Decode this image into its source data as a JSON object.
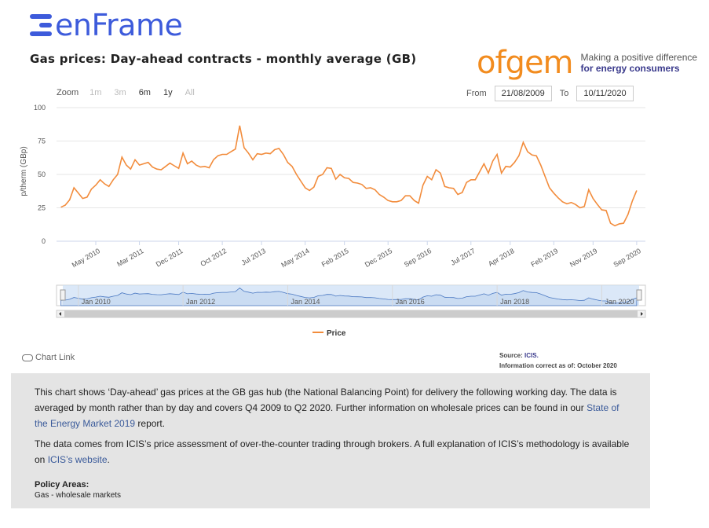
{
  "brand": {
    "name": "enFrame",
    "color": "#3d5bdb"
  },
  "ofgem": {
    "name": "ofgem",
    "tagline_1": "Making a positive difference",
    "tagline_2": "for energy consumers",
    "color": "#f28c1f"
  },
  "toolbar": {
    "zoom_label": "Zoom",
    "zoom_options": [
      "1m",
      "3m",
      "6m",
      "1y",
      "All"
    ],
    "zoom_enabled": [
      false,
      false,
      true,
      true,
      false
    ],
    "from_label": "From",
    "from_value": "21/08/2009",
    "to_label": "To",
    "to_value": "10/11/2020"
  },
  "chart_data": {
    "type": "line",
    "title": "Gas prices: Day-ahead contracts - monthly average (GB)",
    "ylabel": "p/therm (GBp)",
    "ylim": [
      0,
      100
    ],
    "yticks": [
      0,
      25,
      50,
      75,
      100
    ],
    "x_start": "2009-08",
    "x_end": "2020-11",
    "x_tick_labels": [
      {
        "label": "May 2010",
        "date": "2010-05"
      },
      {
        "label": "Mar 2011",
        "date": "2011-03"
      },
      {
        "label": "Dec 2011",
        "date": "2011-12"
      },
      {
        "label": "Oct 2012",
        "date": "2012-10"
      },
      {
        "label": "Jul 2013",
        "date": "2013-07"
      },
      {
        "label": "May 2014",
        "date": "2014-05"
      },
      {
        "label": "Feb 2015",
        "date": "2015-02"
      },
      {
        "label": "Dec 2015",
        "date": "2015-12"
      },
      {
        "label": "Sep 2016",
        "date": "2016-09"
      },
      {
        "label": "Jul 2017",
        "date": "2017-07"
      },
      {
        "label": "Apr 2018",
        "date": "2018-04"
      },
      {
        "label": "Feb 2019",
        "date": "2019-02"
      },
      {
        "label": "Nov 2019",
        "date": "2019-11"
      },
      {
        "label": "Sep 2020",
        "date": "2020-09"
      }
    ],
    "navigator_labels": [
      {
        "label": "Jan 2010",
        "date": "2010-01"
      },
      {
        "label": "Jan 2012",
        "date": "2012-01"
      },
      {
        "label": "Jan 2014",
        "date": "2014-01"
      },
      {
        "label": "Jan 2016",
        "date": "2016-01"
      },
      {
        "label": "Jan 2018",
        "date": "2018-01"
      },
      {
        "label": "Jan 2020",
        "date": "2020-01"
      }
    ],
    "series": [
      {
        "name": "Price",
        "color": "#f28c3c",
        "points": [
          [
            "2009-09",
            25.5
          ],
          [
            "2009-10",
            27
          ],
          [
            "2009-11",
            31
          ],
          [
            "2009-12",
            40
          ],
          [
            "2010-01",
            36
          ],
          [
            "2010-02",
            32
          ],
          [
            "2010-03",
            33
          ],
          [
            "2010-04",
            39
          ],
          [
            "2010-05",
            42
          ],
          [
            "2010-06",
            46
          ],
          [
            "2010-07",
            43
          ],
          [
            "2010-08",
            41
          ],
          [
            "2010-09",
            46
          ],
          [
            "2010-10",
            50
          ],
          [
            "2010-11",
            63
          ],
          [
            "2010-12",
            57
          ],
          [
            "2011-01",
            54
          ],
          [
            "2011-02",
            61
          ],
          [
            "2011-03",
            57
          ],
          [
            "2011-04",
            58
          ],
          [
            "2011-05",
            59
          ],
          [
            "2011-06",
            55.5
          ],
          [
            "2011-07",
            54
          ],
          [
            "2011-08",
            53.5
          ],
          [
            "2011-09",
            56
          ],
          [
            "2011-10",
            58.5
          ],
          [
            "2011-11",
            56.5
          ],
          [
            "2011-12",
            54.5
          ],
          [
            "2012-01",
            66
          ],
          [
            "2012-02",
            58
          ],
          [
            "2012-03",
            60
          ],
          [
            "2012-04",
            57
          ],
          [
            "2012-05",
            55.5
          ],
          [
            "2012-06",
            56
          ],
          [
            "2012-07",
            55
          ],
          [
            "2012-08",
            61
          ],
          [
            "2012-09",
            64
          ],
          [
            "2012-10",
            65
          ],
          [
            "2012-11",
            65
          ],
          [
            "2012-12",
            67
          ],
          [
            "2013-01",
            69
          ],
          [
            "2013-02",
            86.5
          ],
          [
            "2013-03",
            70
          ],
          [
            "2013-04",
            66
          ],
          [
            "2013-05",
            61
          ],
          [
            "2013-06",
            65.5
          ],
          [
            "2013-07",
            65
          ],
          [
            "2013-08",
            66
          ],
          [
            "2013-09",
            65.5
          ],
          [
            "2013-10",
            68.5
          ],
          [
            "2013-11",
            69.5
          ],
          [
            "2013-12",
            65
          ],
          [
            "2014-01",
            59
          ],
          [
            "2014-02",
            56
          ],
          [
            "2014-03",
            50
          ],
          [
            "2014-04",
            45
          ],
          [
            "2014-05",
            40
          ],
          [
            "2014-06",
            38
          ],
          [
            "2014-07",
            40.5
          ],
          [
            "2014-08",
            48.5
          ],
          [
            "2014-09",
            50
          ],
          [
            "2014-10",
            55
          ],
          [
            "2014-11",
            54.5
          ],
          [
            "2014-12",
            46.5
          ],
          [
            "2015-01",
            50
          ],
          [
            "2015-02",
            47.5
          ],
          [
            "2015-03",
            47
          ],
          [
            "2015-04",
            44
          ],
          [
            "2015-05",
            43.5
          ],
          [
            "2015-06",
            42.5
          ],
          [
            "2015-07",
            39.5
          ],
          [
            "2015-08",
            40
          ],
          [
            "2015-09",
            38.5
          ],
          [
            "2015-10",
            35
          ],
          [
            "2015-11",
            33
          ],
          [
            "2015-12",
            30.5
          ],
          [
            "2016-01",
            29.5
          ],
          [
            "2016-02",
            29.5
          ],
          [
            "2016-03",
            30.5
          ],
          [
            "2016-04",
            34
          ],
          [
            "2016-05",
            34
          ],
          [
            "2016-06",
            30.5
          ],
          [
            "2016-07",
            28.5
          ],
          [
            "2016-08",
            42
          ],
          [
            "2016-09",
            48.5
          ],
          [
            "2016-10",
            46
          ],
          [
            "2016-11",
            53.5
          ],
          [
            "2016-12",
            51
          ],
          [
            "2017-01",
            41
          ],
          [
            "2017-02",
            40
          ],
          [
            "2017-03",
            39.5
          ],
          [
            "2017-04",
            35
          ],
          [
            "2017-05",
            36.5
          ],
          [
            "2017-06",
            44
          ],
          [
            "2017-07",
            46
          ],
          [
            "2017-08",
            46
          ],
          [
            "2017-09",
            52
          ],
          [
            "2017-10",
            58
          ],
          [
            "2017-11",
            51
          ],
          [
            "2017-12",
            60
          ],
          [
            "2018-01",
            65
          ],
          [
            "2018-02",
            51
          ],
          [
            "2018-03",
            56
          ],
          [
            "2018-04",
            55.5
          ],
          [
            "2018-05",
            59
          ],
          [
            "2018-06",
            64
          ],
          [
            "2018-07",
            74
          ],
          [
            "2018-08",
            67
          ],
          [
            "2018-09",
            64.5
          ],
          [
            "2018-10",
            64
          ],
          [
            "2018-11",
            57
          ],
          [
            "2018-12",
            48.5
          ],
          [
            "2019-01",
            40
          ],
          [
            "2019-02",
            36
          ],
          [
            "2019-03",
            32.5
          ],
          [
            "2019-04",
            29.5
          ],
          [
            "2019-05",
            28
          ],
          [
            "2019-06",
            29
          ],
          [
            "2019-07",
            27.5
          ],
          [
            "2019-08",
            25
          ],
          [
            "2019-09",
            26
          ],
          [
            "2019-10",
            38.5
          ],
          [
            "2019-11",
            32
          ],
          [
            "2019-12",
            27.5
          ],
          [
            "2020-01",
            23.5
          ],
          [
            "2020-02",
            23
          ],
          [
            "2020-03",
            13.5
          ],
          [
            "2020-04",
            11.5
          ],
          [
            "2020-05",
            13
          ],
          [
            "2020-06",
            13.5
          ],
          [
            "2020-07",
            20
          ],
          [
            "2020-08",
            30
          ],
          [
            "2020-09",
            38
          ]
        ]
      }
    ],
    "legend_position": "bottom-center",
    "grid": true
  },
  "footer": {
    "chart_link": "Chart Link",
    "source_label": "Source:",
    "source_name": "ICIS.",
    "info_line": "Information correct as of: October 2020"
  },
  "description": {
    "p1_a": "This chart shows ‘Day-ahead’ gas prices at the GB gas hub (the National Balancing Point) for delivery the following working day. The data is averaged by month rather than by day and covers Q4 2009 to Q2 2020. Further information on wholesale prices can be found in our ",
    "p1_link": "State of the Energy Market 2019",
    "p1_b": " report.",
    "p2_a": "The data comes from ICIS’s price assessment of over-the-counter trading through brokers. A full explanation of ICIS’s methodology is available on ",
    "p2_link": "ICIS’s website",
    "p2_b": ".",
    "policy_heading": "Policy Areas:",
    "policy_value": "Gas - wholesale markets"
  }
}
